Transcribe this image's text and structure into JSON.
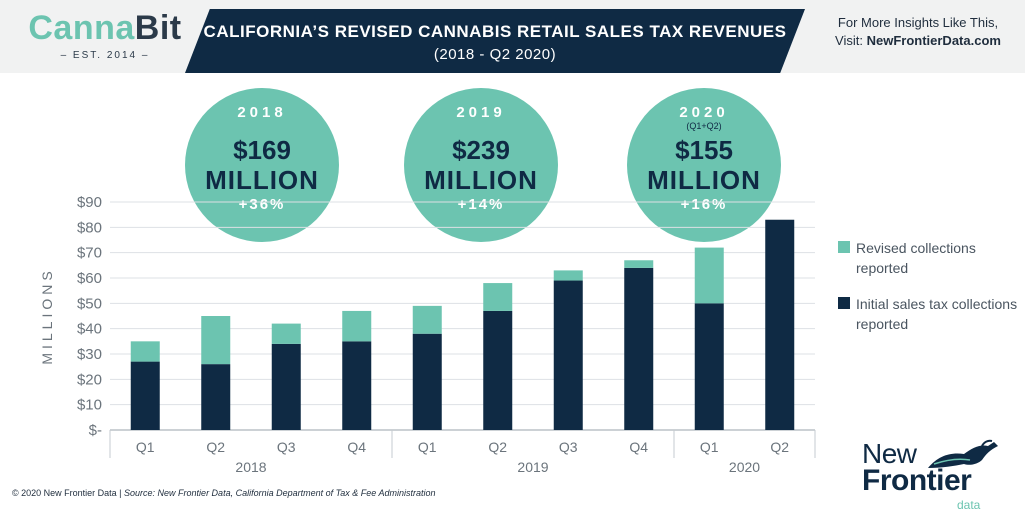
{
  "logo": {
    "name_a": "Canna",
    "name_b": "Bit",
    "tagline": "– EST. 2014 –"
  },
  "header": {
    "title": "CALIFORNIA’S REVISED CANNABIS RETAIL SALES TAX REVENUES",
    "subtitle": "(2018 - Q2 2020)"
  },
  "promo": {
    "line1": "For More Insights Like This,",
    "line2_prefix": "Visit: ",
    "line2_link": "NewFrontierData.com"
  },
  "summary": [
    {
      "year": "2018",
      "note": "",
      "amount": "$169",
      "unit": "MILLION",
      "change": "+36%"
    },
    {
      "year": "2019",
      "note": "",
      "amount": "$239",
      "unit": "MILLION",
      "change": "+14%"
    },
    {
      "year": "2020",
      "note": "(Q1+Q2)",
      "amount": "$155",
      "unit": "MILLION",
      "change": "+16%"
    }
  ],
  "legend": [
    {
      "label": "Revised collections reported",
      "color": "#6cc4b0"
    },
    {
      "label": "Initial sales tax collections reported",
      "color": "#0f2a44"
    }
  ],
  "footer": {
    "prefix": "© 2020  New Frontier Data | ",
    "source": "Source: New Frontier Data, California Department of Tax & Fee Administration"
  },
  "brand_logo": {
    "line1": "New",
    "line2": "Frontier",
    "line3": "data"
  },
  "chart_data": {
    "type": "bar",
    "stacked": true,
    "ylabel": "MILLIONS",
    "ylim": [
      0,
      90
    ],
    "yticks": [
      0,
      10,
      20,
      30,
      40,
      50,
      60,
      70,
      80,
      90
    ],
    "ytick_labels": [
      "$-",
      "$10",
      "$20",
      "$30",
      "$40",
      "$50",
      "$60",
      "$70",
      "$80",
      "$90"
    ],
    "categories": [
      "Q1",
      "Q2",
      "Q3",
      "Q4",
      "Q1",
      "Q2",
      "Q3",
      "Q4",
      "Q1",
      "Q2"
    ],
    "groups": [
      {
        "label": "2018",
        "count": 4
      },
      {
        "label": "2019",
        "count": 4
      },
      {
        "label": "2020",
        "count": 2
      }
    ],
    "series": [
      {
        "name": "Initial sales tax collections reported",
        "color": "#0f2a44",
        "values": [
          27,
          26,
          34,
          35,
          38,
          47,
          59,
          64,
          50,
          83
        ]
      },
      {
        "name": "Revised collections reported",
        "color": "#6cc4b0",
        "values": [
          8,
          19,
          8,
          12,
          11,
          11,
          4,
          3,
          22,
          0
        ]
      }
    ],
    "grid": true,
    "legend_position": "right"
  }
}
